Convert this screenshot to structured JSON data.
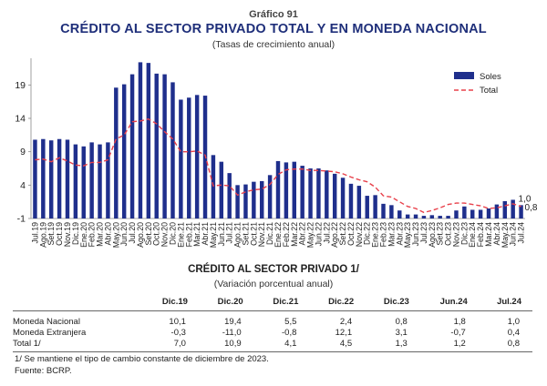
{
  "header": {
    "number": "Gráfico 91",
    "title": "CRÉDITO AL SECTOR PRIVADO TOTAL Y EN MONEDA NACIONAL",
    "subtitle": "(Tasas de crecimiento anual)"
  },
  "chart_data": {
    "type": "bar",
    "categories": [
      "Jul.19",
      "Ago.19",
      "Set.19",
      "Oct.19",
      "Nov.19",
      "Dic.19",
      "Ene.20",
      "Feb.20",
      "Mar.20",
      "Abr.20",
      "May.20",
      "Jun.20",
      "Jul.20",
      "Ago.20",
      "Set.20",
      "Oct.20",
      "Nov.20",
      "Dic.20",
      "Ene.21",
      "Feb.21",
      "Mar.21",
      "Abr.21",
      "May.21",
      "Jun.21",
      "Jul.21",
      "Ago.21",
      "Set.21",
      "Oct.21",
      "Nov.21",
      "Dic.21",
      "Ene.22",
      "Feb.22",
      "Mar.22",
      "Abr.22",
      "May.22",
      "Jun.22",
      "Jul.22",
      "Ago.22",
      "Set.22",
      "Oct.22",
      "Nov.22",
      "Dic.22",
      "Ene.23",
      "Feb.23",
      "Mar.23",
      "Abr.23",
      "May.23",
      "Jun.23",
      "Jul.23",
      "Ago.23",
      "Set.23",
      "Oct.23",
      "Nov.23",
      "Dic.23",
      "Ene.24",
      "Feb.24",
      "Mar.24",
      "Abr.24",
      "May.24",
      "Jun.24",
      "Jul.24"
    ],
    "yticks": [
      -1,
      4,
      9,
      14,
      19
    ],
    "ylim": [
      -1,
      23
    ],
    "legend_position": "top-right",
    "series": [
      {
        "name": "Soles",
        "type": "bar",
        "color": "#1f2f8c",
        "values": [
          10.8,
          10.9,
          10.7,
          10.9,
          10.8,
          10.1,
          9.8,
          10.4,
          10.1,
          10.4,
          18.6,
          19.1,
          20.6,
          22.4,
          22.3,
          20.7,
          20.6,
          19.4,
          16.8,
          17.1,
          17.5,
          17.4,
          8.5,
          7.5,
          5.8,
          4.0,
          4.1,
          4.5,
          4.6,
          5.5,
          7.6,
          7.4,
          7.5,
          6.9,
          6.5,
          6.5,
          6.2,
          5.7,
          5.1,
          4.2,
          3.9,
          2.4,
          2.5,
          1.2,
          1.0,
          0.2,
          -0.4,
          -0.4,
          -0.6,
          -0.5,
          -0.6,
          -0.6,
          0.2,
          0.8,
          0.3,
          0.3,
          0.5,
          1.1,
          1.6,
          1.8,
          1.0
        ]
      },
      {
        "name": "Total",
        "type": "line",
        "color": "#e8404a",
        "values": [
          7.8,
          7.9,
          7.5,
          8.1,
          7.6,
          7.0,
          6.9,
          7.4,
          7.4,
          7.8,
          10.9,
          11.5,
          13.5,
          13.6,
          13.9,
          13.2,
          12.0,
          10.9,
          9.0,
          9.0,
          9.1,
          8.5,
          3.9,
          4.0,
          3.9,
          2.5,
          3.0,
          3.3,
          3.4,
          4.1,
          5.6,
          6.3,
          6.4,
          6.4,
          6.2,
          6.2,
          6.1,
          6.0,
          5.7,
          5.2,
          4.8,
          4.5,
          3.7,
          2.4,
          2.2,
          1.5,
          0.8,
          0.5,
          -0.1,
          0.2,
          0.6,
          1.1,
          1.3,
          1.3,
          1.1,
          0.9,
          0.5,
          0.6,
          0.9,
          1.2,
          0.8
        ]
      }
    ],
    "annotations": [
      {
        "series": "Soles",
        "index": 60,
        "label": "1,0"
      },
      {
        "series": "Total",
        "index": 60,
        "label": "0,8"
      }
    ]
  },
  "table": {
    "title": "CRÉDITO AL SECTOR PRIVADO 1/",
    "subtitle": "(Variación porcentual anual)",
    "columns": [
      "",
      "Dic.19",
      "Dic.20",
      "Dic.21",
      "Dic.22",
      "Dic.23",
      "Jun.24",
      "Jul.24"
    ],
    "rows": [
      [
        "Moneda Nacional",
        "10,1",
        "19,4",
        "5,5",
        "2,4",
        "0,8",
        "1,8",
        "1,0"
      ],
      [
        "Moneda Extranjera",
        "-0,3",
        "-11,0",
        "-0,8",
        "12,1",
        "3,1",
        "-0,7",
        "0,4"
      ],
      [
        "Total 1/",
        "7,0",
        "10,9",
        "4,1",
        "4,5",
        "1,3",
        "1,2",
        "0,8"
      ]
    ]
  },
  "notes": [
    "1/ Se mantiene el tipo de cambio constante de diciembre de 2023.",
    "Fuente: BCRP."
  ]
}
